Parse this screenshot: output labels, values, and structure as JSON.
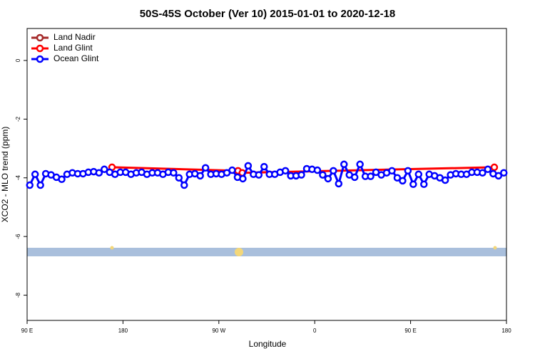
{
  "chart_data": {
    "type": "line",
    "title": "50S-45S October (Ver 10)   2015-01-01 to 2020-12-18",
    "xlabel": "Longitude",
    "ylabel": "XCO2 - MLO trend (ppm)",
    "xlim": [
      90,
      540
    ],
    "ylim": [
      -8.86,
      1.09
    ],
    "xticks": [
      {
        "value": 90,
        "label": "90 E"
      },
      {
        "value": 180,
        "label": "180"
      },
      {
        "value": 270,
        "label": "90 W"
      },
      {
        "value": 360,
        "label": "0"
      },
      {
        "value": 450,
        "label": "90 E"
      },
      {
        "value": 540,
        "label": "180"
      }
    ],
    "yticks": [
      0,
      -2,
      -4,
      -6,
      -8
    ],
    "legend": "top-left",
    "series": [
      {
        "name": "Land Nadir",
        "color": "#a52a2a",
        "x": [],
        "values": []
      },
      {
        "name": "Land Glint",
        "color": "#ff0000",
        "x": [
          169.7,
          288,
          292,
          528.6
        ],
        "values": [
          -3.64,
          -3.76,
          -3.83,
          -3.64
        ]
      },
      {
        "name": "Ocean Glint",
        "color": "#0000ff",
        "x": [
          92.5,
          97.5,
          102.5,
          107.5,
          112.5,
          117.5,
          122.5,
          127.5,
          132.5,
          137.5,
          142.5,
          147.5,
          152.5,
          157.5,
          162.5,
          167.5,
          172.5,
          177.5,
          182.5,
          187.5,
          192.5,
          197.5,
          202.5,
          207.5,
          212.5,
          217.5,
          222.5,
          227.5,
          232.5,
          237.5,
          242.5,
          247.5,
          252.5,
          257.5,
          262.5,
          267.5,
          272.5,
          277.5,
          282.5,
          287.5,
          292.5,
          297.5,
          302.5,
          307.5,
          312.5,
          317.5,
          322.5,
          327.5,
          332.5,
          337.5,
          342.5,
          347.5,
          352.5,
          357.5,
          362.5,
          367.5,
          372.5,
          377.5,
          382.5,
          387.5,
          392.5,
          397.5,
          402.5,
          407.5,
          412.5,
          417.5,
          422.5,
          427.5,
          432.5,
          437.5,
          442.5,
          447.5,
          452.5,
          457.5,
          462.5,
          467.5,
          472.5,
          477.5,
          482.5,
          487.5,
          492.5,
          497.5,
          502.5,
          507.5,
          512.5,
          517.5,
          522.5,
          527.5,
          532.5,
          537.5
        ],
        "values": [
          -4.25,
          -3.88,
          -4.25,
          -3.86,
          -3.9,
          -3.98,
          -4.05,
          -3.88,
          -3.83,
          -3.86,
          -3.86,
          -3.81,
          -3.79,
          -3.83,
          -3.71,
          -3.81,
          -3.88,
          -3.81,
          -3.81,
          -3.88,
          -3.83,
          -3.81,
          -3.88,
          -3.83,
          -3.83,
          -3.88,
          -3.81,
          -3.83,
          -4.0,
          -4.25,
          -3.88,
          -3.86,
          -3.93,
          -3.66,
          -3.88,
          -3.86,
          -3.88,
          -3.83,
          -3.74,
          -3.98,
          -4.03,
          -3.59,
          -3.88,
          -3.9,
          -3.62,
          -3.88,
          -3.88,
          -3.81,
          -3.76,
          -3.93,
          -3.93,
          -3.9,
          -3.69,
          -3.71,
          -3.74,
          -3.9,
          -4.03,
          -3.76,
          -4.2,
          -3.54,
          -3.9,
          -3.98,
          -3.54,
          -3.95,
          -3.95,
          -3.81,
          -3.9,
          -3.83,
          -3.76,
          -4.0,
          -4.1,
          -3.76,
          -4.22,
          -3.88,
          -4.22,
          -3.88,
          -3.93,
          -4.0,
          -4.08,
          -3.9,
          -3.86,
          -3.88,
          -3.88,
          -3.81,
          -3.81,
          -3.83,
          -3.71,
          -3.86,
          -3.93,
          -3.83
        ]
      }
    ]
  }
}
